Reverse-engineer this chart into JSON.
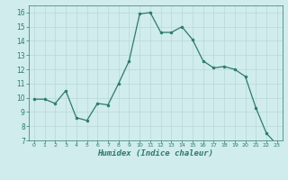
{
  "x": [
    0,
    1,
    2,
    3,
    4,
    5,
    6,
    7,
    8,
    9,
    10,
    11,
    12,
    13,
    14,
    15,
    16,
    17,
    18,
    19,
    20,
    21,
    22,
    23
  ],
  "y": [
    9.9,
    9.9,
    9.6,
    10.5,
    8.6,
    8.4,
    9.6,
    9.5,
    11.0,
    12.6,
    15.9,
    16.0,
    14.6,
    14.6,
    15.0,
    14.1,
    12.6,
    12.1,
    12.2,
    12.0,
    11.5,
    9.3,
    7.5,
    6.7
  ],
  "xlabel": "Humidex (Indice chaleur)",
  "ylim": [
    7,
    16.5
  ],
  "xlim": [
    -0.5,
    23.5
  ],
  "yticks": [
    7,
    8,
    9,
    10,
    11,
    12,
    13,
    14,
    15,
    16
  ],
  "xticks": [
    0,
    1,
    2,
    3,
    4,
    5,
    6,
    7,
    8,
    9,
    10,
    11,
    12,
    13,
    14,
    15,
    16,
    17,
    18,
    19,
    20,
    21,
    22,
    23
  ],
  "line_color": "#2d7a6e",
  "marker_color": "#2d7a6e",
  "bg_color": "#d0ecec",
  "grid_color": "#b8d8d8",
  "tick_color": "#2d7a6e",
  "xlabel_color": "#2d7a6e"
}
